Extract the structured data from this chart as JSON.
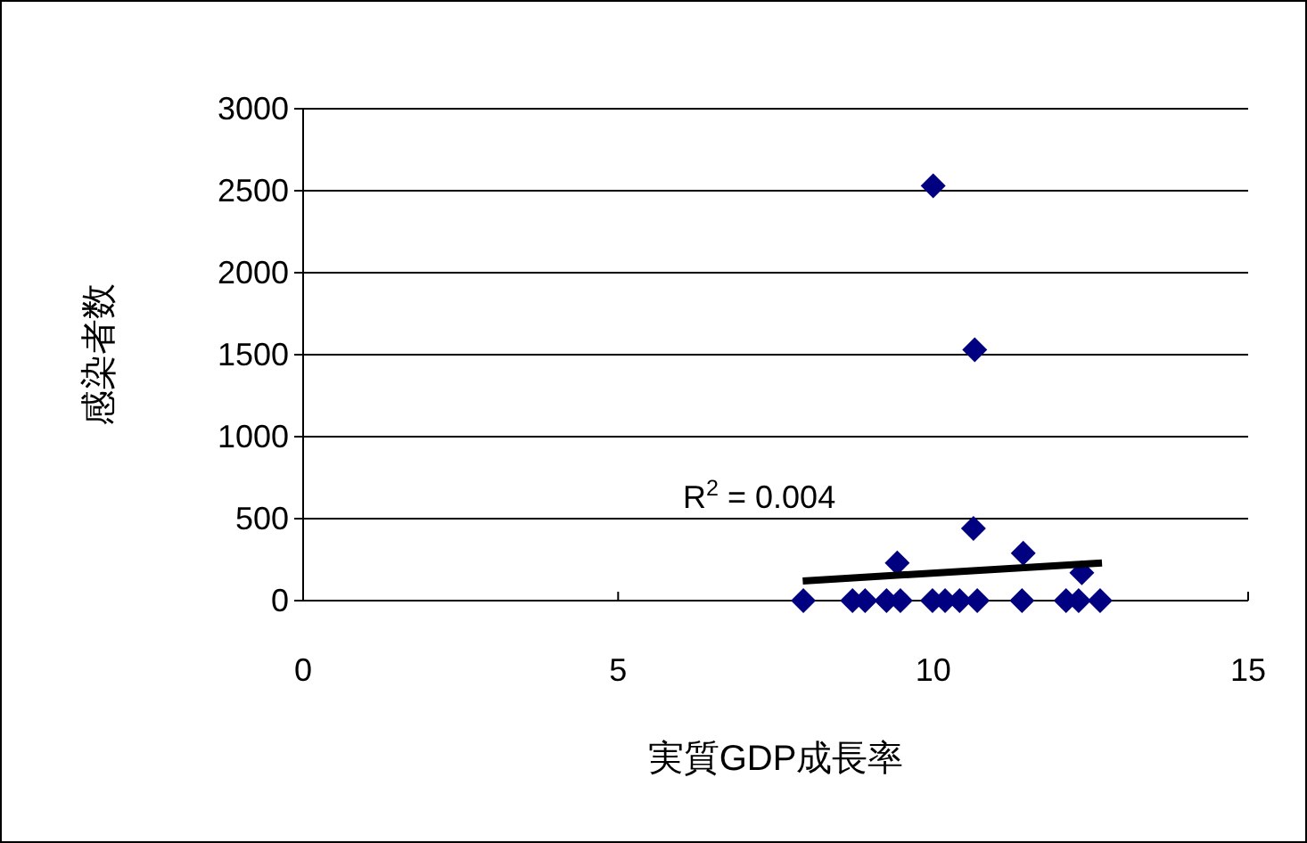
{
  "chart_data": {
    "type": "scatter",
    "xlabel": "実質GDP成長率",
    "ylabel": "感染者数",
    "xlim": [
      0,
      15
    ],
    "ylim": [
      0,
      3000
    ],
    "xticks": [
      0,
      5,
      10,
      15
    ],
    "yticks": [
      0,
      500,
      1000,
      1500,
      2000,
      2500,
      3000
    ],
    "grid": "y",
    "marker": "diamond",
    "annotations": [
      "R$^{2}$ = 0.004"
    ],
    "series": [
      {
        "color": "#000080",
        "x": [
          7.94,
          8.72,
          8.92,
          9.26,
          9.48,
          9.99,
          10.19,
          10.42,
          10.7,
          11.41,
          12.11,
          12.31,
          12.65,
          9.43,
          10.64,
          11.43,
          12.36,
          10.0,
          10.66
        ],
        "values": [
          0,
          0,
          0,
          0,
          0,
          0,
          0,
          0,
          0,
          0,
          0,
          0,
          0,
          230,
          440,
          290,
          170,
          2530,
          1530
        ]
      },
      {
        "type": "line",
        "color": "#000000",
        "marker": "none",
        "x": [
          7.93,
          12.68
        ],
        "values": [
          120,
          230
        ]
      }
    ]
  }
}
